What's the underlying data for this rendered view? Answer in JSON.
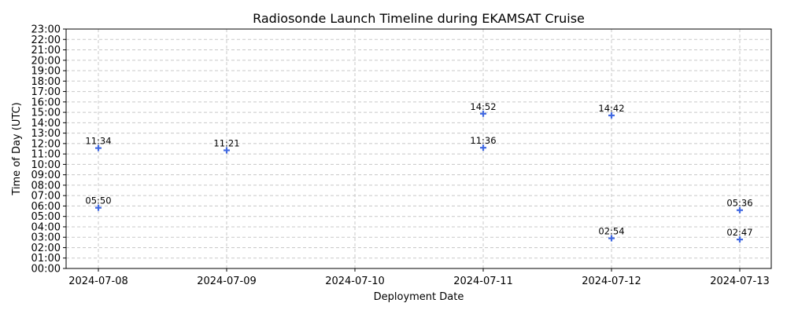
{
  "chart_data": {
    "type": "scatter",
    "title": "Radiosonde Launch Timeline during EKAMSAT Cruise",
    "xlabel": "Deployment Date",
    "ylabel": "Time of Day (UTC)",
    "x_ticks": [
      "2024-07-08",
      "2024-07-09",
      "2024-07-10",
      "2024-07-11",
      "2024-07-12",
      "2024-07-13"
    ],
    "y_ticks": [
      "00:00",
      "01:00",
      "02:00",
      "03:00",
      "04:00",
      "05:00",
      "06:00",
      "07:00",
      "08:00",
      "09:00",
      "10:00",
      "11:00",
      "12:00",
      "13:00",
      "14:00",
      "15:00",
      "16:00",
      "17:00",
      "18:00",
      "19:00",
      "20:00",
      "21:00",
      "22:00",
      "23:00"
    ],
    "ylim": [
      "00:00",
      "23:00"
    ],
    "xlim": [
      "2024-07-07",
      "2024-07-13"
    ],
    "grid": true,
    "marker": "plus",
    "color": "#4169e1",
    "points": [
      {
        "date": "2024-07-08",
        "time": "05:50",
        "label": "05:50"
      },
      {
        "date": "2024-07-08",
        "time": "11:34",
        "label": "11:34"
      },
      {
        "date": "2024-07-09",
        "time": "11:21",
        "label": "11:21"
      },
      {
        "date": "2024-07-11",
        "time": "11:36",
        "label": "11:36"
      },
      {
        "date": "2024-07-11",
        "time": "14:52",
        "label": "14:52"
      },
      {
        "date": "2024-07-12",
        "time": "02:54",
        "label": "02:54"
      },
      {
        "date": "2024-07-12",
        "time": "14:42",
        "label": "14:42"
      },
      {
        "date": "2024-07-13",
        "time": "02:47",
        "label": "02:47"
      },
      {
        "date": "2024-07-13",
        "time": "05:36",
        "label": "05:36"
      }
    ]
  }
}
